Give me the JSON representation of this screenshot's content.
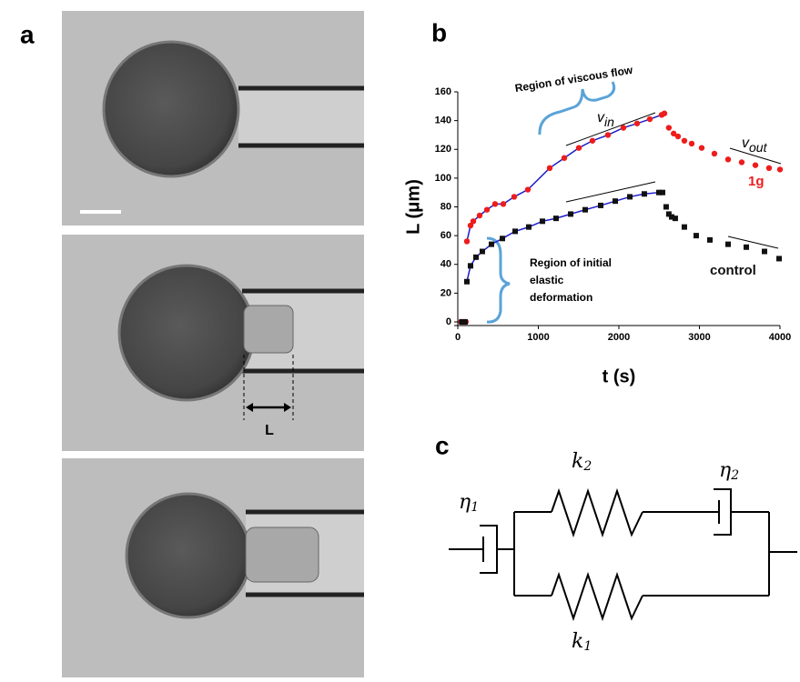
{
  "panels": {
    "a": "a",
    "b": "b",
    "c": "c"
  },
  "panel_a": {
    "length_label": "L"
  },
  "chart_data": {
    "type": "scatter",
    "xlabel": "t (s)",
    "ylabel": "L (μm)",
    "xlim": [
      0,
      4000
    ],
    "xticks": [
      0,
      1000,
      2000,
      3000,
      4000
    ],
    "ylim": [
      0,
      160
    ],
    "yticks": [
      0,
      20,
      40,
      60,
      80,
      100,
      120,
      140,
      160
    ],
    "fit": true,
    "fit_color": "#1c1ccc",
    "series": [
      {
        "name": "1g",
        "color": "#ee1c1c",
        "marker": "circle",
        "x": [
          40,
          60,
          80,
          100,
          113,
          158,
          192,
          271,
          362,
          463,
          565,
          700,
          870,
          1141,
          1322,
          1503,
          1672,
          1864,
          2056,
          2226,
          2384,
          2531,
          2565,
          2620,
          2680,
          2734,
          2813,
          2904,
          3028,
          3186,
          3356,
          3525,
          3695,
          3864,
          4000
        ],
        "values": [
          0,
          0,
          0,
          0,
          56,
          67,
          70,
          74,
          78,
          82,
          82,
          87,
          92,
          107,
          114,
          121,
          126,
          130,
          135,
          138,
          141,
          144,
          145,
          135,
          131,
          129,
          126,
          124,
          121,
          117,
          113,
          111,
          109,
          107,
          106
        ]
      },
      {
        "name": "control",
        "color": "#111111",
        "marker": "square",
        "x": [
          50,
          70,
          90,
          113,
          158,
          226,
          305,
          418,
          554,
          712,
          881,
          1051,
          1220,
          1401,
          1582,
          1774,
          1955,
          2136,
          2316,
          2497,
          2542,
          2587,
          2620,
          2655,
          2700,
          2813,
          2960,
          3130,
          3356,
          3582,
          3808,
          3989
        ],
        "values": [
          0,
          0,
          0,
          28,
          39,
          45,
          49,
          54,
          58,
          63,
          66,
          70,
          72,
          75,
          78,
          81,
          84,
          87,
          89,
          90,
          90,
          80,
          75,
          73,
          72,
          66,
          60,
          57,
          54,
          52,
          49,
          44
        ]
      }
    ],
    "annotations": {
      "viscous": "Region of viscous flow",
      "vin": {
        "base": "v",
        "sub": "in"
      },
      "vout": {
        "base": "v",
        "sub": "out"
      },
      "elastic": [
        "Region of initial",
        "elastic",
        "deformation"
      ]
    }
  },
  "diagram": {
    "eta1": {
      "base": "η",
      "sub": "1"
    },
    "eta2": {
      "base": "η",
      "sub": "2"
    },
    "k1": {
      "base": "k",
      "sub": "1"
    },
    "k2": {
      "base": "k",
      "sub": "2"
    }
  }
}
